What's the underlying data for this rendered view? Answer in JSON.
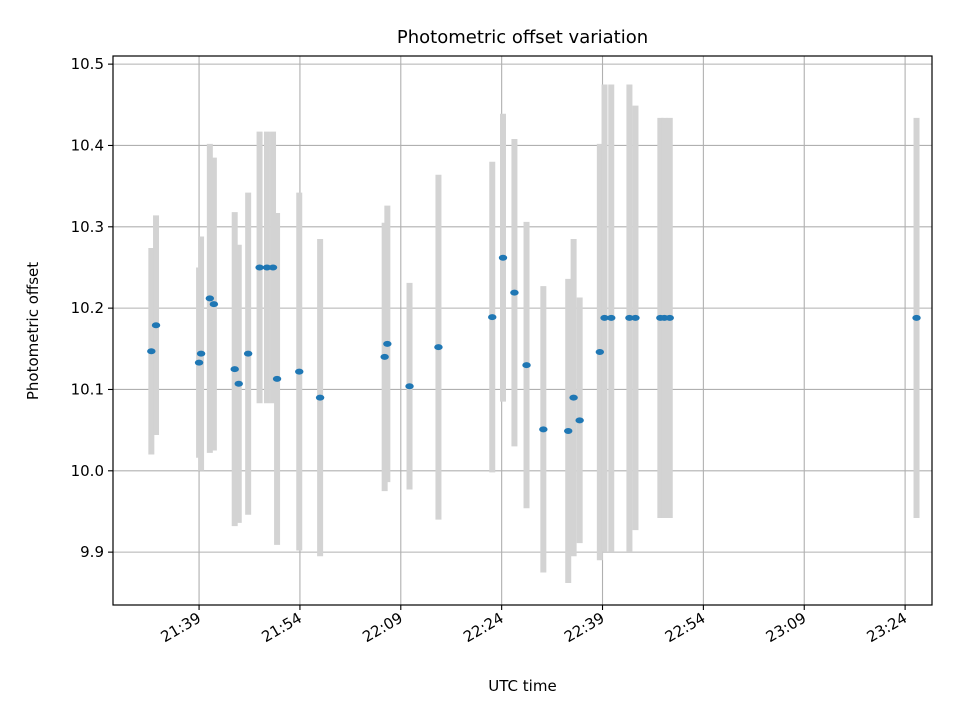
{
  "chart_data": {
    "type": "scatter",
    "title": "Photometric offset variation",
    "xlabel": "UTC time",
    "ylabel": "Photometric offset",
    "x_unit": "minutes",
    "x_tick_values": [
      99,
      114,
      129,
      144,
      159,
      174,
      189,
      204
    ],
    "x_tick_labels": [
      "21:39",
      "21:54",
      "22:09",
      "22:24",
      "22:39",
      "22:54",
      "23:09",
      "23:24"
    ],
    "xlim": [
      86.2,
      208.0
    ],
    "ylim": [
      9.835,
      10.51
    ],
    "y_ticks": [
      9.9,
      10.0,
      10.1,
      10.2,
      10.3,
      10.4,
      10.5
    ],
    "y_tick_labels": [
      "9.9",
      "10.0",
      "10.1",
      "10.2",
      "10.3",
      "10.4",
      "10.5"
    ],
    "grid": true,
    "point_color": "#1f77b4",
    "errorbar_color": "#d3d3d3",
    "points": [
      {
        "x": 91.9,
        "y": 10.147,
        "err": 0.127
      },
      {
        "x": 92.6,
        "y": 10.179,
        "err": 0.135
      },
      {
        "x": 99.0,
        "y": 10.133,
        "err": 0.117
      },
      {
        "x": 99.3,
        "y": 10.144,
        "err": 0.144
      },
      {
        "x": 100.6,
        "y": 10.212,
        "err": 0.19
      },
      {
        "x": 101.2,
        "y": 10.205,
        "err": 0.18
      },
      {
        "x": 104.3,
        "y": 10.125,
        "err": 0.193
      },
      {
        "x": 104.9,
        "y": 10.107,
        "err": 0.171
      },
      {
        "x": 106.3,
        "y": 10.144,
        "err": 0.198
      },
      {
        "x": 108.0,
        "y": 10.25,
        "err": 0.167
      },
      {
        "x": 109.1,
        "y": 10.25,
        "err": 0.167
      },
      {
        "x": 110.0,
        "y": 10.25,
        "err": 0.167
      },
      {
        "x": 110.6,
        "y": 10.113,
        "err": 0.204
      },
      {
        "x": 113.9,
        "y": 10.122,
        "err": 0.22
      },
      {
        "x": 117.0,
        "y": 10.09,
        "err": 0.195
      },
      {
        "x": 126.6,
        "y": 10.14,
        "err": 0.165
      },
      {
        "x": 127.0,
        "y": 10.156,
        "err": 0.17
      },
      {
        "x": 130.3,
        "y": 10.104,
        "err": 0.127
      },
      {
        "x": 134.6,
        "y": 10.152,
        "err": 0.212
      },
      {
        "x": 142.6,
        "y": 10.189,
        "err": 0.191
      },
      {
        "x": 144.2,
        "y": 10.262,
        "err": 0.177
      },
      {
        "x": 145.9,
        "y": 10.219,
        "err": 0.189
      },
      {
        "x": 147.7,
        "y": 10.13,
        "err": 0.176
      },
      {
        "x": 150.2,
        "y": 10.051,
        "err": 0.176
      },
      {
        "x": 153.9,
        "y": 10.049,
        "err": 0.187
      },
      {
        "x": 154.7,
        "y": 10.09,
        "err": 0.195
      },
      {
        "x": 155.6,
        "y": 10.062,
        "err": 0.151
      },
      {
        "x": 158.6,
        "y": 10.146,
        "err": 0.256
      },
      {
        "x": 159.3,
        "y": 10.188,
        "err": 0.287
      },
      {
        "x": 160.3,
        "y": 10.188,
        "err": 0.287
      },
      {
        "x": 163.0,
        "y": 10.188,
        "err": 0.287
      },
      {
        "x": 163.9,
        "y": 10.188,
        "err": 0.261
      },
      {
        "x": 167.6,
        "y": 10.188,
        "err": 0.246
      },
      {
        "x": 168.2,
        "y": 10.188,
        "err": 0.246
      },
      {
        "x": 169.0,
        "y": 10.188,
        "err": 0.246
      },
      {
        "x": 205.7,
        "y": 10.188,
        "err": 0.246
      }
    ]
  }
}
